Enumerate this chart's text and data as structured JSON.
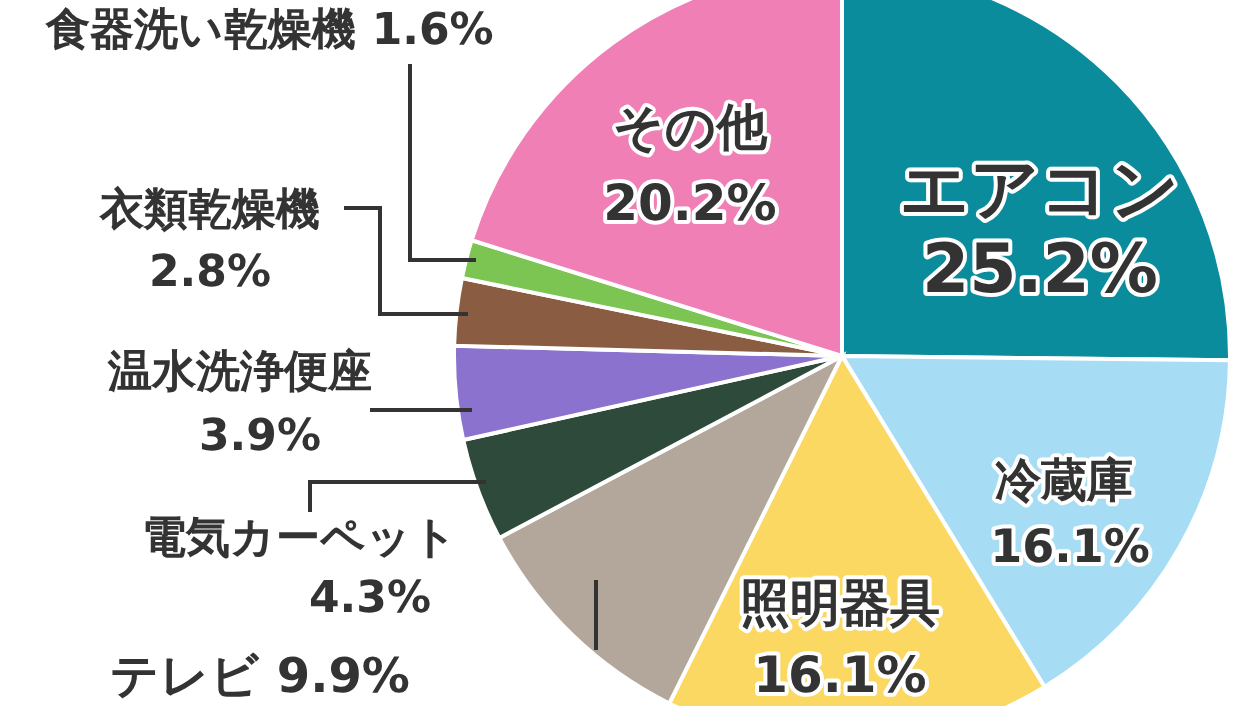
{
  "chart_data": {
    "type": "pie",
    "categories": [
      "エアコン",
      "冷蔵庫",
      "照明器具",
      "テレビ",
      "電気カーペット",
      "温水洗浄便座",
      "衣類乾燥機",
      "食器洗い乾燥機",
      "その他"
    ],
    "values": [
      25.2,
      16.1,
      16.1,
      9.9,
      4.3,
      3.9,
      2.8,
      1.6,
      20.2
    ],
    "value_labels": [
      "25.2%",
      "16.1%",
      "16.1%",
      "9.9%",
      "4.3%",
      "3.9%",
      "2.8%",
      "1.6%",
      "20.2%"
    ],
    "colors": [
      "#0b8c9c",
      "#a6dcf4",
      "#fbd862",
      "#b3a79b",
      "#2e4a3b",
      "#8c72cf",
      "#8a5d42",
      "#7cc552",
      "#f07fb6"
    ]
  }
}
